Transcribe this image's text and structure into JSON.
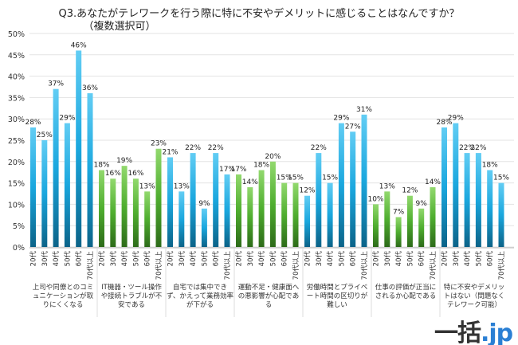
{
  "chart_data": {
    "type": "bar",
    "title": "Q3.あなたがテレワークを行う際に特に不安やデメリットに感じることはなんですか？",
    "subtitle": "（複数選択可）",
    "ylim": [
      0,
      50
    ],
    "yticks": [
      "0%",
      "5%",
      "10%",
      "15%",
      "20%",
      "25%",
      "30%",
      "35%",
      "40%",
      "45%",
      "50%"
    ],
    "grid": true,
    "age_labels": [
      "20代",
      "30代",
      "40代",
      "50代",
      "60代",
      "70代以上"
    ],
    "groups": [
      {
        "label": "上司や同僚とのコミュニケーションが取りにくくなる",
        "values": [
          28,
          25,
          37,
          29,
          46,
          36
        ],
        "color": "blue"
      },
      {
        "label": "IT機器・ツール操作や接続トラブルが不安である",
        "values": [
          18,
          16,
          19,
          16,
          13,
          23
        ],
        "color": "green"
      },
      {
        "label": "自宅では集中できず、かえって業務効率が下がる",
        "values": [
          21,
          13,
          22,
          9,
          22,
          17
        ],
        "color": "blue"
      },
      {
        "label": "運動不足・健康面への悪影響が心配である",
        "values": [
          17,
          14,
          18,
          20,
          15,
          15
        ],
        "color": "green"
      },
      {
        "label": "労働時間とプライベート時間の区切りが難しい",
        "values": [
          12,
          22,
          15,
          29,
          27,
          31
        ],
        "color": "blue"
      },
      {
        "label": "仕事の評価が正当にされるか心配である",
        "values": [
          10,
          13,
          7,
          12,
          9,
          14
        ],
        "color": "green"
      },
      {
        "label": "特に不安やデメリットはない（問題なくテレワーク可能）",
        "values": [
          28,
          29,
          22,
          22,
          18,
          15
        ],
        "color": "blue"
      }
    ]
  },
  "colors": {
    "blue_top": "#62cdf4",
    "blue_mid": "#1aa7de",
    "blue_bottom": "#0b6388",
    "green_top": "#92d96e",
    "green_mid": "#4fae2f",
    "green_bottom": "#2d6b19"
  },
  "logo": {
    "main": "一括",
    "suffix": ".jp"
  }
}
